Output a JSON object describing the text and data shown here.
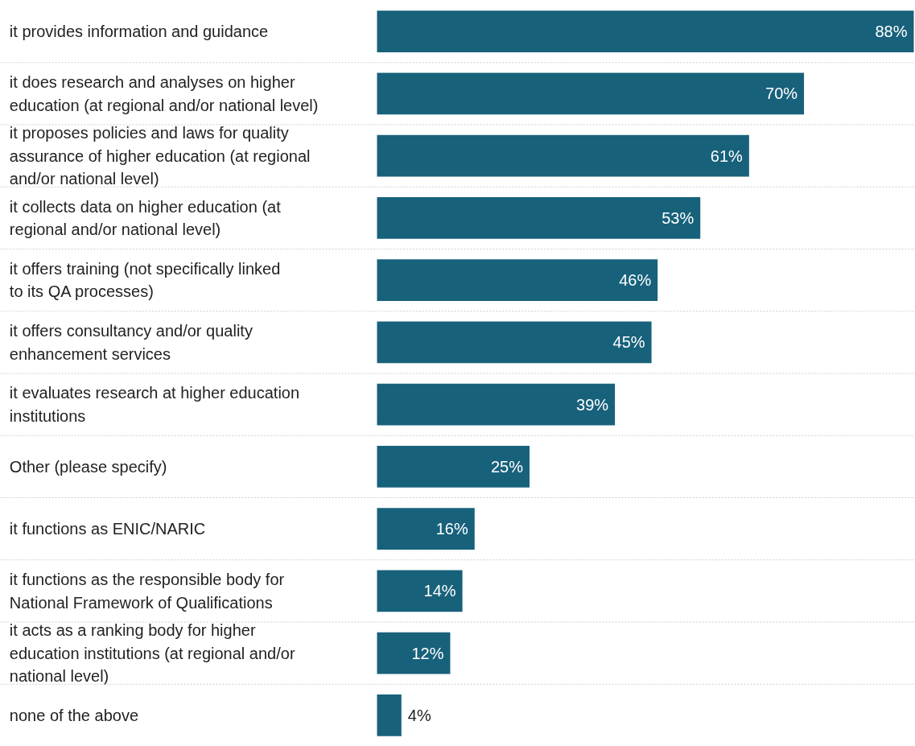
{
  "chart_data": {
    "type": "bar",
    "orientation": "horizontal",
    "grid": false,
    "color": "#17617b",
    "categories": [
      "it provides information and guidance",
      "it does research and analyses on higher education (at regional and/or national level)",
      "it proposes policies and laws for quality assurance of higher education (at regional and/or national level)",
      "it collects data on higher education (at regional and/or national level)",
      "it offers training (not specifically linked to its QA processes)",
      "it offers consultancy and/or quality enhancement services",
      "it evaluates research at higher education institutions",
      "Other (please specify)",
      "it functions as ENIC/NARIC",
      "it functions as the responsible body for National Framework of Qualifications",
      "it acts as a ranking body for higher education institutions (at regional and/or national level)",
      "none of the above"
    ],
    "values": [
      88,
      70,
      61,
      53,
      46,
      45,
      39,
      25,
      16,
      14,
      12,
      4
    ],
    "value_labels": [
      "88%",
      "70%",
      "61%",
      "53%",
      "46%",
      "45%",
      "39%",
      "25%",
      "16%",
      "14%",
      "12%",
      "4%"
    ]
  }
}
